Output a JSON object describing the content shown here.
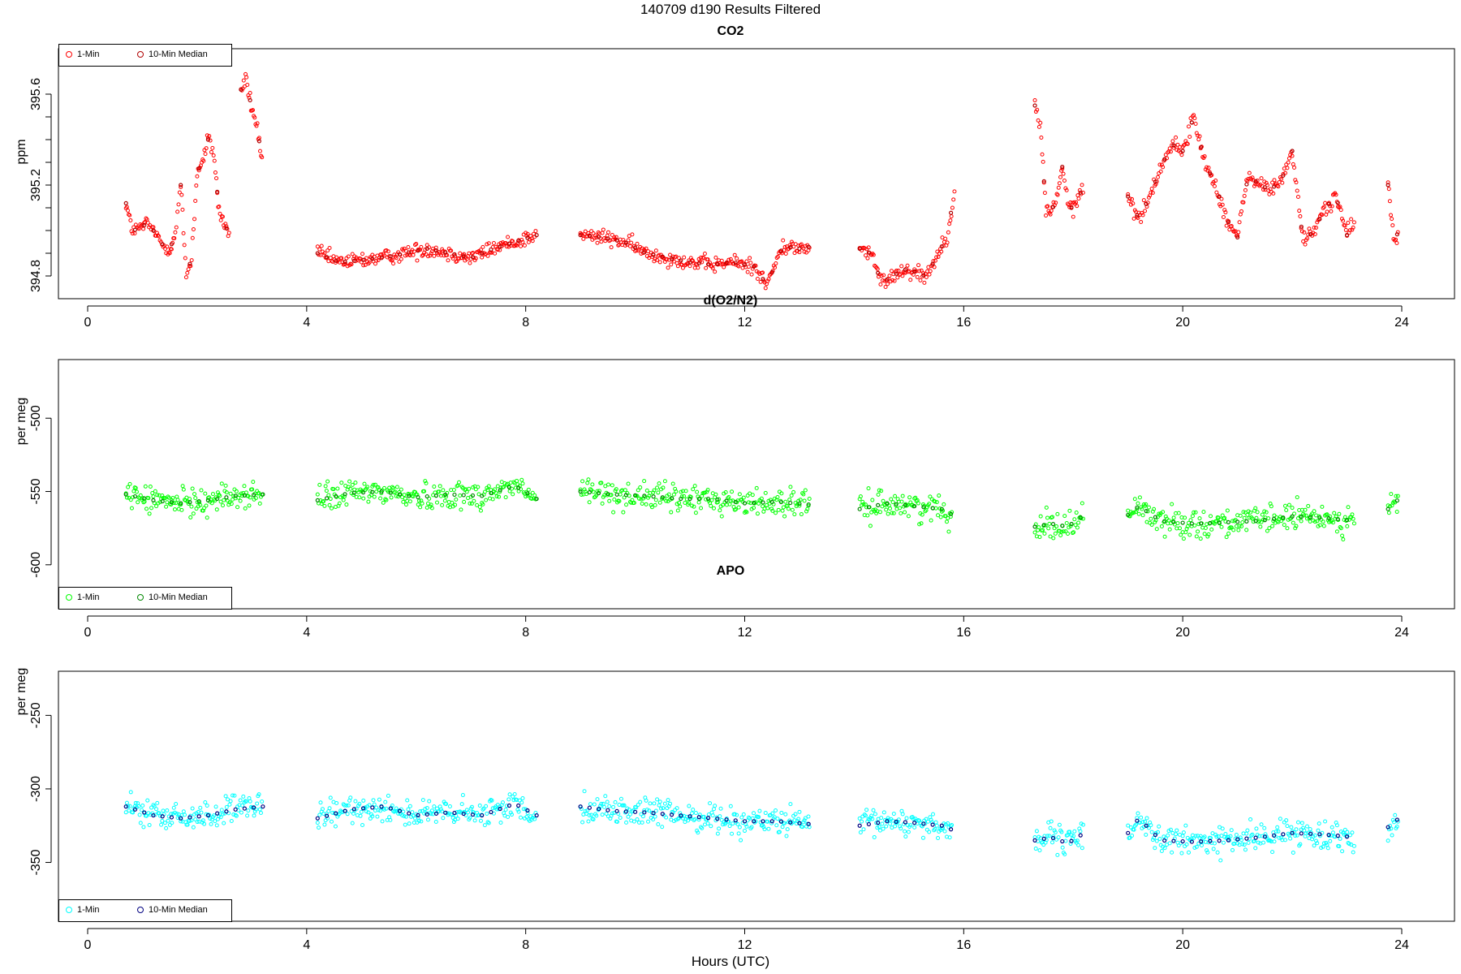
{
  "title": "140709   d190   Results Filtered",
  "xlabel": "Hours (UTC)",
  "chart_data": [
    {
      "type": "scatter",
      "title": "CO2",
      "ylabel": "ppm",
      "xlim": [
        0,
        24
      ],
      "ylim": [
        394.7,
        395.8
      ],
      "xticks": [
        0,
        4,
        8,
        12,
        16,
        20,
        24
      ],
      "yticks": [
        394.8,
        394.9,
        395.0,
        395.1,
        395.2,
        395.3,
        395.4,
        395.5,
        395.6
      ],
      "ytick_labels": {
        "394.8": "394.8",
        "395.2": "395.2",
        "395.6": "395.6"
      },
      "legend": [
        "1-Min",
        "10-Min Median"
      ],
      "legend_position": "top-left",
      "colors": {
        "one_min": "#ff0000",
        "median": "#b00000"
      },
      "segments": [
        {
          "x": [
            0.7,
            0.8,
            0.9,
            1.0,
            1.1,
            1.2,
            1.3,
            1.4,
            1.5,
            1.6,
            1.7,
            1.8,
            1.9,
            2.0,
            2.1,
            2.2,
            2.3,
            2.4,
            2.5,
            2.6
          ],
          "y": [
            395.12,
            395.01,
            395.0,
            395.02,
            395.03,
            395.0,
            394.96,
            394.93,
            394.92,
            394.98,
            395.2,
            394.8,
            394.88,
            395.26,
            395.3,
            395.4,
            395.35,
            395.08,
            395.03,
            394.97
          ]
        },
        {
          "x": [
            2.8,
            2.9,
            3.0,
            3.1,
            3.2
          ],
          "y": [
            395.62,
            395.66,
            395.53,
            395.45,
            395.28
          ]
        },
        {
          "x": [
            4.2,
            4.6,
            5.0,
            5.4,
            5.8,
            6.2,
            6.6,
            7.0,
            7.4,
            7.8,
            8.2
          ],
          "y": [
            394.9,
            394.86,
            394.87,
            394.88,
            394.9,
            394.92,
            394.9,
            394.88,
            394.92,
            394.95,
            394.98
          ]
        },
        {
          "x": [
            9.0,
            9.4,
            9.8,
            10.2,
            10.6,
            11.0,
            11.4,
            11.8,
            12.2,
            12.4,
            12.7,
            13.0,
            13.2
          ],
          "y": [
            394.98,
            394.97,
            394.95,
            394.9,
            394.88,
            394.86,
            394.85,
            394.86,
            394.84,
            394.76,
            394.93,
            394.92,
            394.93
          ]
        },
        {
          "x": [
            14.1,
            14.3,
            14.5,
            14.7,
            14.9,
            15.1,
            15.3,
            15.5,
            15.7,
            15.85
          ],
          "y": [
            394.92,
            394.9,
            394.77,
            394.8,
            394.83,
            394.82,
            394.8,
            394.88,
            394.98,
            395.2
          ]
        },
        {
          "x": [
            17.3,
            17.4,
            17.5,
            17.6,
            17.7,
            17.8,
            17.9,
            18.0,
            18.1,
            18.2
          ],
          "y": [
            395.55,
            395.45,
            395.1,
            395.08,
            395.15,
            395.28,
            395.12,
            395.09,
            395.15,
            395.2
          ]
        },
        {
          "x": [
            19.0,
            19.2,
            19.4,
            19.6,
            19.8,
            20.0,
            20.2,
            20.4,
            20.6,
            20.8,
            21.0,
            21.2,
            21.4,
            21.6,
            21.8,
            22.0,
            22.2,
            22.4,
            22.6,
            22.8,
            23.0,
            23.15
          ],
          "y": [
            395.15,
            395.05,
            395.15,
            395.28,
            395.38,
            395.35,
            395.5,
            395.3,
            395.2,
            395.05,
            394.97,
            395.25,
            395.2,
            395.18,
            395.22,
            395.35,
            394.95,
            395.0,
            395.1,
            395.15,
            394.98,
            395.05
          ]
        },
        {
          "x": [
            23.75,
            23.85,
            23.95
          ],
          "y": [
            395.2,
            394.97,
            394.99
          ]
        }
      ]
    },
    {
      "type": "scatter",
      "title": "d(O2/N2)",
      "ylabel": "per meg",
      "xlim": [
        0,
        24
      ],
      "ylim": [
        -630,
        -460
      ],
      "xticks": [
        0,
        4,
        8,
        12,
        16,
        20,
        24
      ],
      "yticks": [
        -600,
        -550,
        -500
      ],
      "ytick_labels": {
        "-600": "-600",
        "-550": "-550",
        "-500": "-500"
      },
      "legend": [
        "1-Min",
        "10-Min Median"
      ],
      "legend_position": "bottom-left",
      "colors": {
        "one_min": "#00ff00",
        "median": "#008800"
      },
      "segments": [
        {
          "x": [
            0.7,
            1.2,
            1.7,
            2.2,
            2.7,
            3.2
          ],
          "y": [
            -552,
            -556,
            -558,
            -556,
            -553,
            -552
          ]
        },
        {
          "x": [
            4.2,
            4.8,
            5.4,
            6.0,
            6.6,
            7.2,
            7.8,
            8.2
          ],
          "y": [
            -556,
            -551,
            -550,
            -554,
            -552,
            -553,
            -546,
            -555
          ]
        },
        {
          "x": [
            9.0,
            9.6,
            10.2,
            10.8,
            11.4,
            12.0,
            12.6,
            13.2
          ],
          "y": [
            -550,
            -552,
            -553,
            -555,
            -555,
            -558,
            -557,
            -559
          ]
        },
        {
          "x": [
            14.1,
            14.6,
            15.1,
            15.6,
            15.8
          ],
          "y": [
            -562,
            -558,
            -560,
            -562,
            -566
          ]
        },
        {
          "x": [
            17.3,
            17.6,
            17.9,
            18.2
          ],
          "y": [
            -574,
            -572,
            -574,
            -566
          ]
        },
        {
          "x": [
            19.0,
            19.2,
            19.6,
            20.2,
            20.8,
            21.4,
            22.0,
            22.6,
            23.15
          ],
          "y": [
            -566,
            -560,
            -570,
            -572,
            -571,
            -570,
            -567,
            -568,
            -570
          ]
        },
        {
          "x": [
            23.75,
            23.95
          ],
          "y": [
            -562,
            -555
          ]
        }
      ]
    },
    {
      "type": "scatter",
      "title": "APO",
      "ylabel": "per meg",
      "xlim": [
        0,
        24
      ],
      "ylim": [
        -390,
        -220
      ],
      "xticks": [
        0,
        4,
        8,
        12,
        16,
        20,
        24
      ],
      "yticks": [
        -350,
        -300,
        -250
      ],
      "ytick_labels": {
        "-350": "-350",
        "-300": "-300",
        "-250": "-250"
      },
      "legend": [
        "1-Min",
        "10-Min Median"
      ],
      "legend_position": "bottom-left",
      "colors": {
        "one_min": "#00ffff",
        "median": "#000080"
      },
      "segments": [
        {
          "x": [
            0.7,
            1.2,
            1.7,
            2.2,
            2.7,
            3.2
          ],
          "y": [
            -312,
            -318,
            -320,
            -318,
            -314,
            -312
          ]
        },
        {
          "x": [
            4.2,
            4.8,
            5.4,
            6.0,
            6.6,
            7.2,
            7.8,
            8.2
          ],
          "y": [
            -320,
            -314,
            -312,
            -318,
            -316,
            -318,
            -310,
            -318
          ]
        },
        {
          "x": [
            9.0,
            9.6,
            10.2,
            10.8,
            11.4,
            12.0,
            12.6,
            13.2
          ],
          "y": [
            -312,
            -315,
            -316,
            -318,
            -320,
            -322,
            -322,
            -324
          ]
        },
        {
          "x": [
            14.1,
            14.6,
            15.1,
            15.6,
            15.8
          ],
          "y": [
            -325,
            -322,
            -323,
            -325,
            -328
          ]
        },
        {
          "x": [
            17.3,
            17.6,
            17.9,
            18.2
          ],
          "y": [
            -335,
            -333,
            -337,
            -330
          ]
        },
        {
          "x": [
            19.0,
            19.2,
            19.6,
            20.2,
            20.8,
            21.4,
            22.0,
            22.6,
            23.15
          ],
          "y": [
            -330,
            -320,
            -335,
            -336,
            -335,
            -333,
            -330,
            -331,
            -333
          ]
        },
        {
          "x": [
            23.75,
            23.95
          ],
          "y": [
            -326,
            -320
          ]
        }
      ]
    }
  ]
}
